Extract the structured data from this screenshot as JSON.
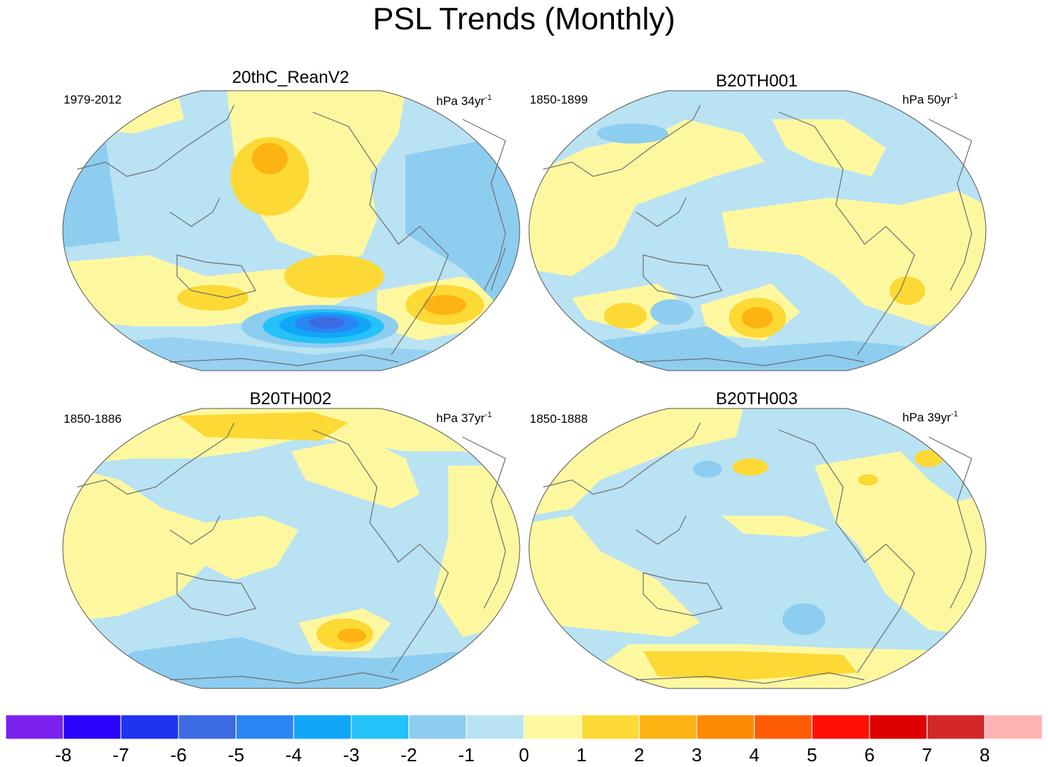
{
  "chart_data": {
    "type": "heatmap",
    "title": "PSL Trends (Monthly)",
    "colorbar": {
      "tick_labels": [
        "-8",
        "-7",
        "-6",
        "-5",
        "-4",
        "-3",
        "-2",
        "-1",
        "0",
        "1",
        "2",
        "3",
        "4",
        "5",
        "6",
        "7",
        "8"
      ],
      "colors": [
        "#7b22ee",
        "#2a04fa",
        "#1e34f0",
        "#3c6ae2",
        "#2a85f2",
        "#12a6f8",
        "#24c2f8",
        "#8dcdf0",
        "#b9e2f3",
        "#fdf8a0",
        "#fdd935",
        "#fdb312",
        "#fe8a04",
        "#fe5c02",
        "#fe1006",
        "#dd0102",
        "#d2282a",
        "#fdb4b4"
      ]
    },
    "panels": [
      {
        "title": "20thC_ReanV2",
        "period": "1979-2012",
        "units": "hPa 34yr",
        "units_exp": "-1"
      },
      {
        "title": "B20TH001",
        "period": "1850-1899",
        "units": "hPa 50yr",
        "units_exp": "-1"
      },
      {
        "title": "B20TH002",
        "period": "1850-1886",
        "units": "hPa 37yr",
        "units_exp": "-1"
      },
      {
        "title": "B20TH003",
        "period": "1850-1888",
        "units": "hPa 39yr",
        "units_exp": "-1"
      }
    ]
  }
}
